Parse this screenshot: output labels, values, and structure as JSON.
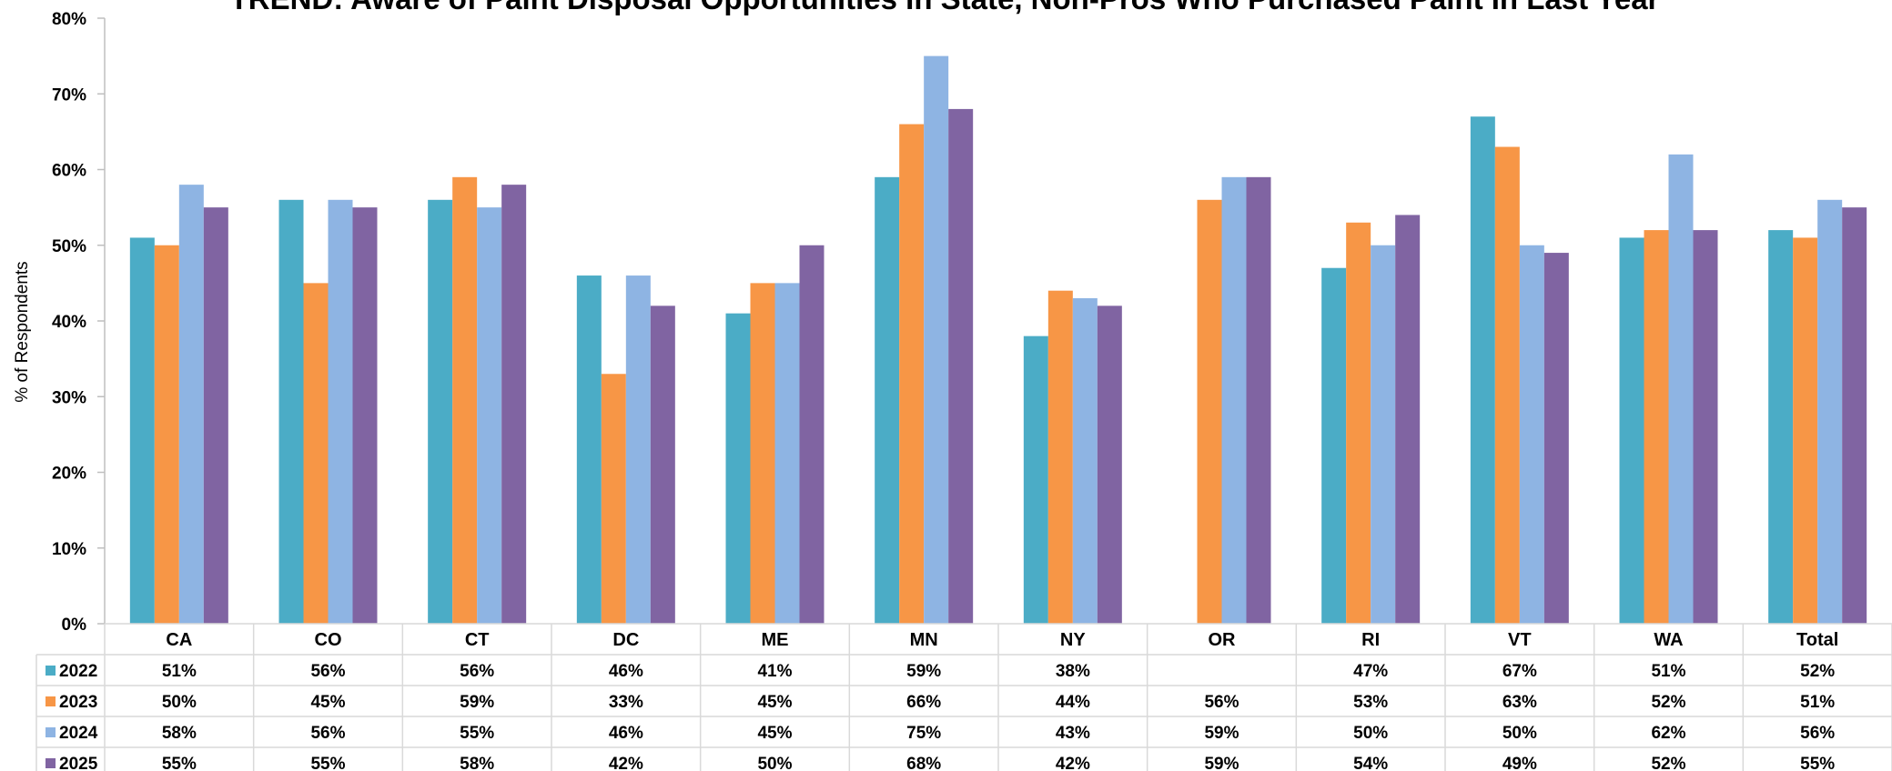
{
  "chart_data": {
    "type": "bar",
    "title": "TREND: Aware of Paint Disposal Opportunities In State, Non-Pros Who Purchased Paint In Last Year",
    "ylabel": "% of Respondents",
    "xlabel": "",
    "ylim": [
      0,
      80
    ],
    "yticks": [
      0,
      10,
      20,
      30,
      40,
      50,
      60,
      70,
      80
    ],
    "ytick_labels": [
      "0%",
      "10%",
      "20%",
      "30%",
      "40%",
      "50%",
      "60%",
      "70%",
      "80%"
    ],
    "grid": false,
    "legend": "data-table-left",
    "categories": [
      "CA",
      "CO",
      "CT",
      "DC",
      "ME",
      "MN",
      "NY",
      "OR",
      "RI",
      "VT",
      "WA",
      "Total"
    ],
    "series": [
      {
        "name": "2022",
        "color": "#4BACC6",
        "values": [
          51,
          56,
          56,
          46,
          41,
          59,
          38,
          null,
          47,
          67,
          51,
          52
        ],
        "labels": [
          "51%",
          "56%",
          "56%",
          "46%",
          "41%",
          "59%",
          "38%",
          "",
          "47%",
          "67%",
          "51%",
          "52%"
        ]
      },
      {
        "name": "2023",
        "color": "#F79646",
        "values": [
          50,
          45,
          59,
          33,
          45,
          66,
          44,
          56,
          53,
          63,
          52,
          51
        ],
        "labels": [
          "50%",
          "45%",
          "59%",
          "33%",
          "45%",
          "66%",
          "44%",
          "56%",
          "53%",
          "63%",
          "52%",
          "51%"
        ]
      },
      {
        "name": "2024",
        "color": "#8EB4E3",
        "values": [
          58,
          56,
          55,
          46,
          45,
          75,
          43,
          59,
          50,
          50,
          62,
          56
        ],
        "labels": [
          "58%",
          "56%",
          "55%",
          "46%",
          "45%",
          "75%",
          "43%",
          "59%",
          "50%",
          "50%",
          "62%",
          "56%"
        ]
      },
      {
        "name": "2025",
        "color": "#8064A2",
        "values": [
          55,
          55,
          58,
          42,
          50,
          68,
          42,
          59,
          54,
          49,
          52,
          55
        ],
        "labels": [
          "55%",
          "55%",
          "58%",
          "42%",
          "50%",
          "68%",
          "42%",
          "59%",
          "54%",
          "49%",
          "52%",
          "55%"
        ]
      }
    ]
  }
}
